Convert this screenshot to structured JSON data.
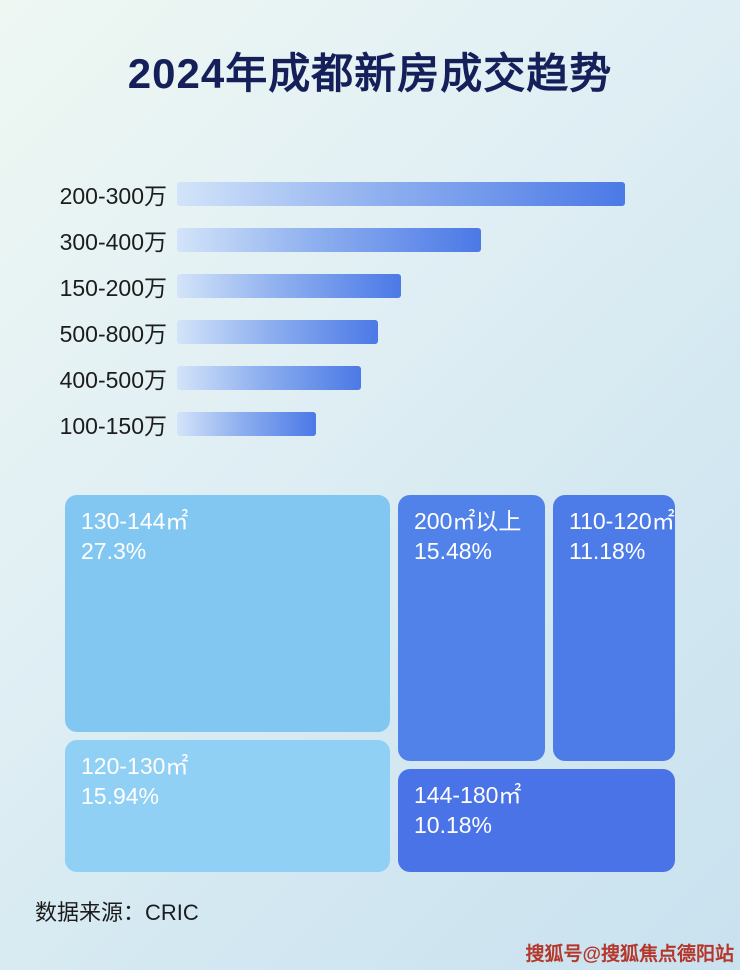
{
  "page": {
    "title": "2024年成都新房成交趋势",
    "source_label": "数据来源：CRIC",
    "watermark": "搜狐号@搜狐焦点德阳站"
  },
  "colors": {
    "title_text": "#15205a",
    "bar_gradient_start": "#d3e4f9",
    "bar_gradient_end": "#4b79e6",
    "watermark_text": "#b5372b"
  },
  "chart_data": [
    {
      "type": "bar",
      "orientation": "horizontal",
      "title": "2024年成都新房成交趋势",
      "categories": [
        "200-300万",
        "300-400万",
        "150-200万",
        "500-800万",
        "400-500万",
        "100-150万"
      ],
      "values_pct_of_max": [
        100,
        68,
        50,
        45,
        41,
        31
      ],
      "value_labels_shown": false,
      "xlabel": "",
      "ylabel": "",
      "grid": false,
      "legend": "none"
    },
    {
      "type": "treemap",
      "title": "",
      "items": [
        {
          "label": "130-144㎡",
          "value": "27.3%",
          "color": "#82c7f1"
        },
        {
          "label": "200㎡以上",
          "value": "15.48%",
          "color": "#5082e9"
        },
        {
          "label": "110-120㎡",
          "value": "11.18%",
          "color": "#4d7ce8"
        },
        {
          "label": "120-130㎡",
          "value": "15.94%",
          "color": "#8fd0f4"
        },
        {
          "label": "144-180㎡",
          "value": "10.18%",
          "color": "#4a73e7"
        }
      ]
    }
  ]
}
